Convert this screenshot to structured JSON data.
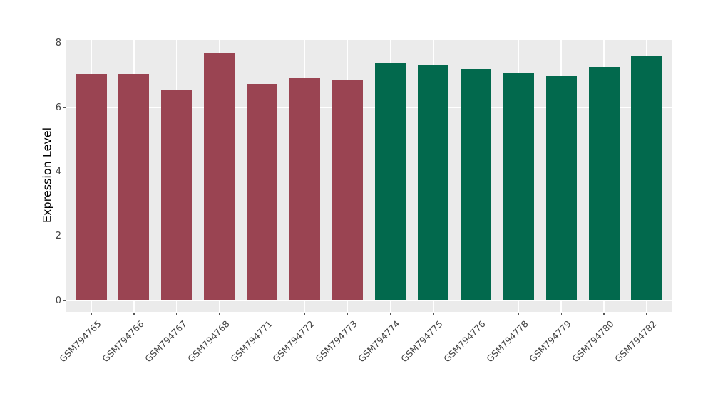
{
  "figure": {
    "background": "#ffffff",
    "panel_background": "#ebebeb",
    "grid_color": "#ffffff",
    "tick_color": "#555555",
    "axis_text_color": "#444444",
    "axis_title_color": "#000000"
  },
  "chart_data": {
    "type": "bar",
    "title": "",
    "xlabel": "",
    "ylabel": "Expression Level",
    "ylim": [
      0,
      8.1
    ],
    "yticks_major": [
      0,
      2,
      4,
      6,
      8
    ],
    "yticks_minor": [
      1,
      3,
      5,
      7
    ],
    "grid": true,
    "legend": "none",
    "categories": [
      "GSM794765",
      "GSM794766",
      "GSM794767",
      "GSM794768",
      "GSM794771",
      "GSM794772",
      "GSM794773",
      "GSM794774",
      "GSM794775",
      "GSM794776",
      "GSM794778",
      "GSM794779",
      "GSM794780",
      "GSM794782"
    ],
    "values": [
      7.05,
      7.05,
      6.53,
      7.7,
      6.73,
      6.9,
      6.85,
      7.4,
      7.32,
      7.2,
      7.07,
      6.98,
      7.27,
      7.6
    ],
    "bar_colors": [
      "#9a4452",
      "#9a4452",
      "#9a4452",
      "#9a4452",
      "#9a4452",
      "#9a4452",
      "#9a4452",
      "#02694d",
      "#02694d",
      "#02694d",
      "#02694d",
      "#02694d",
      "#02694d",
      "#02694d"
    ],
    "group_palette": [
      "#9a4452",
      "#02694d"
    ]
  }
}
